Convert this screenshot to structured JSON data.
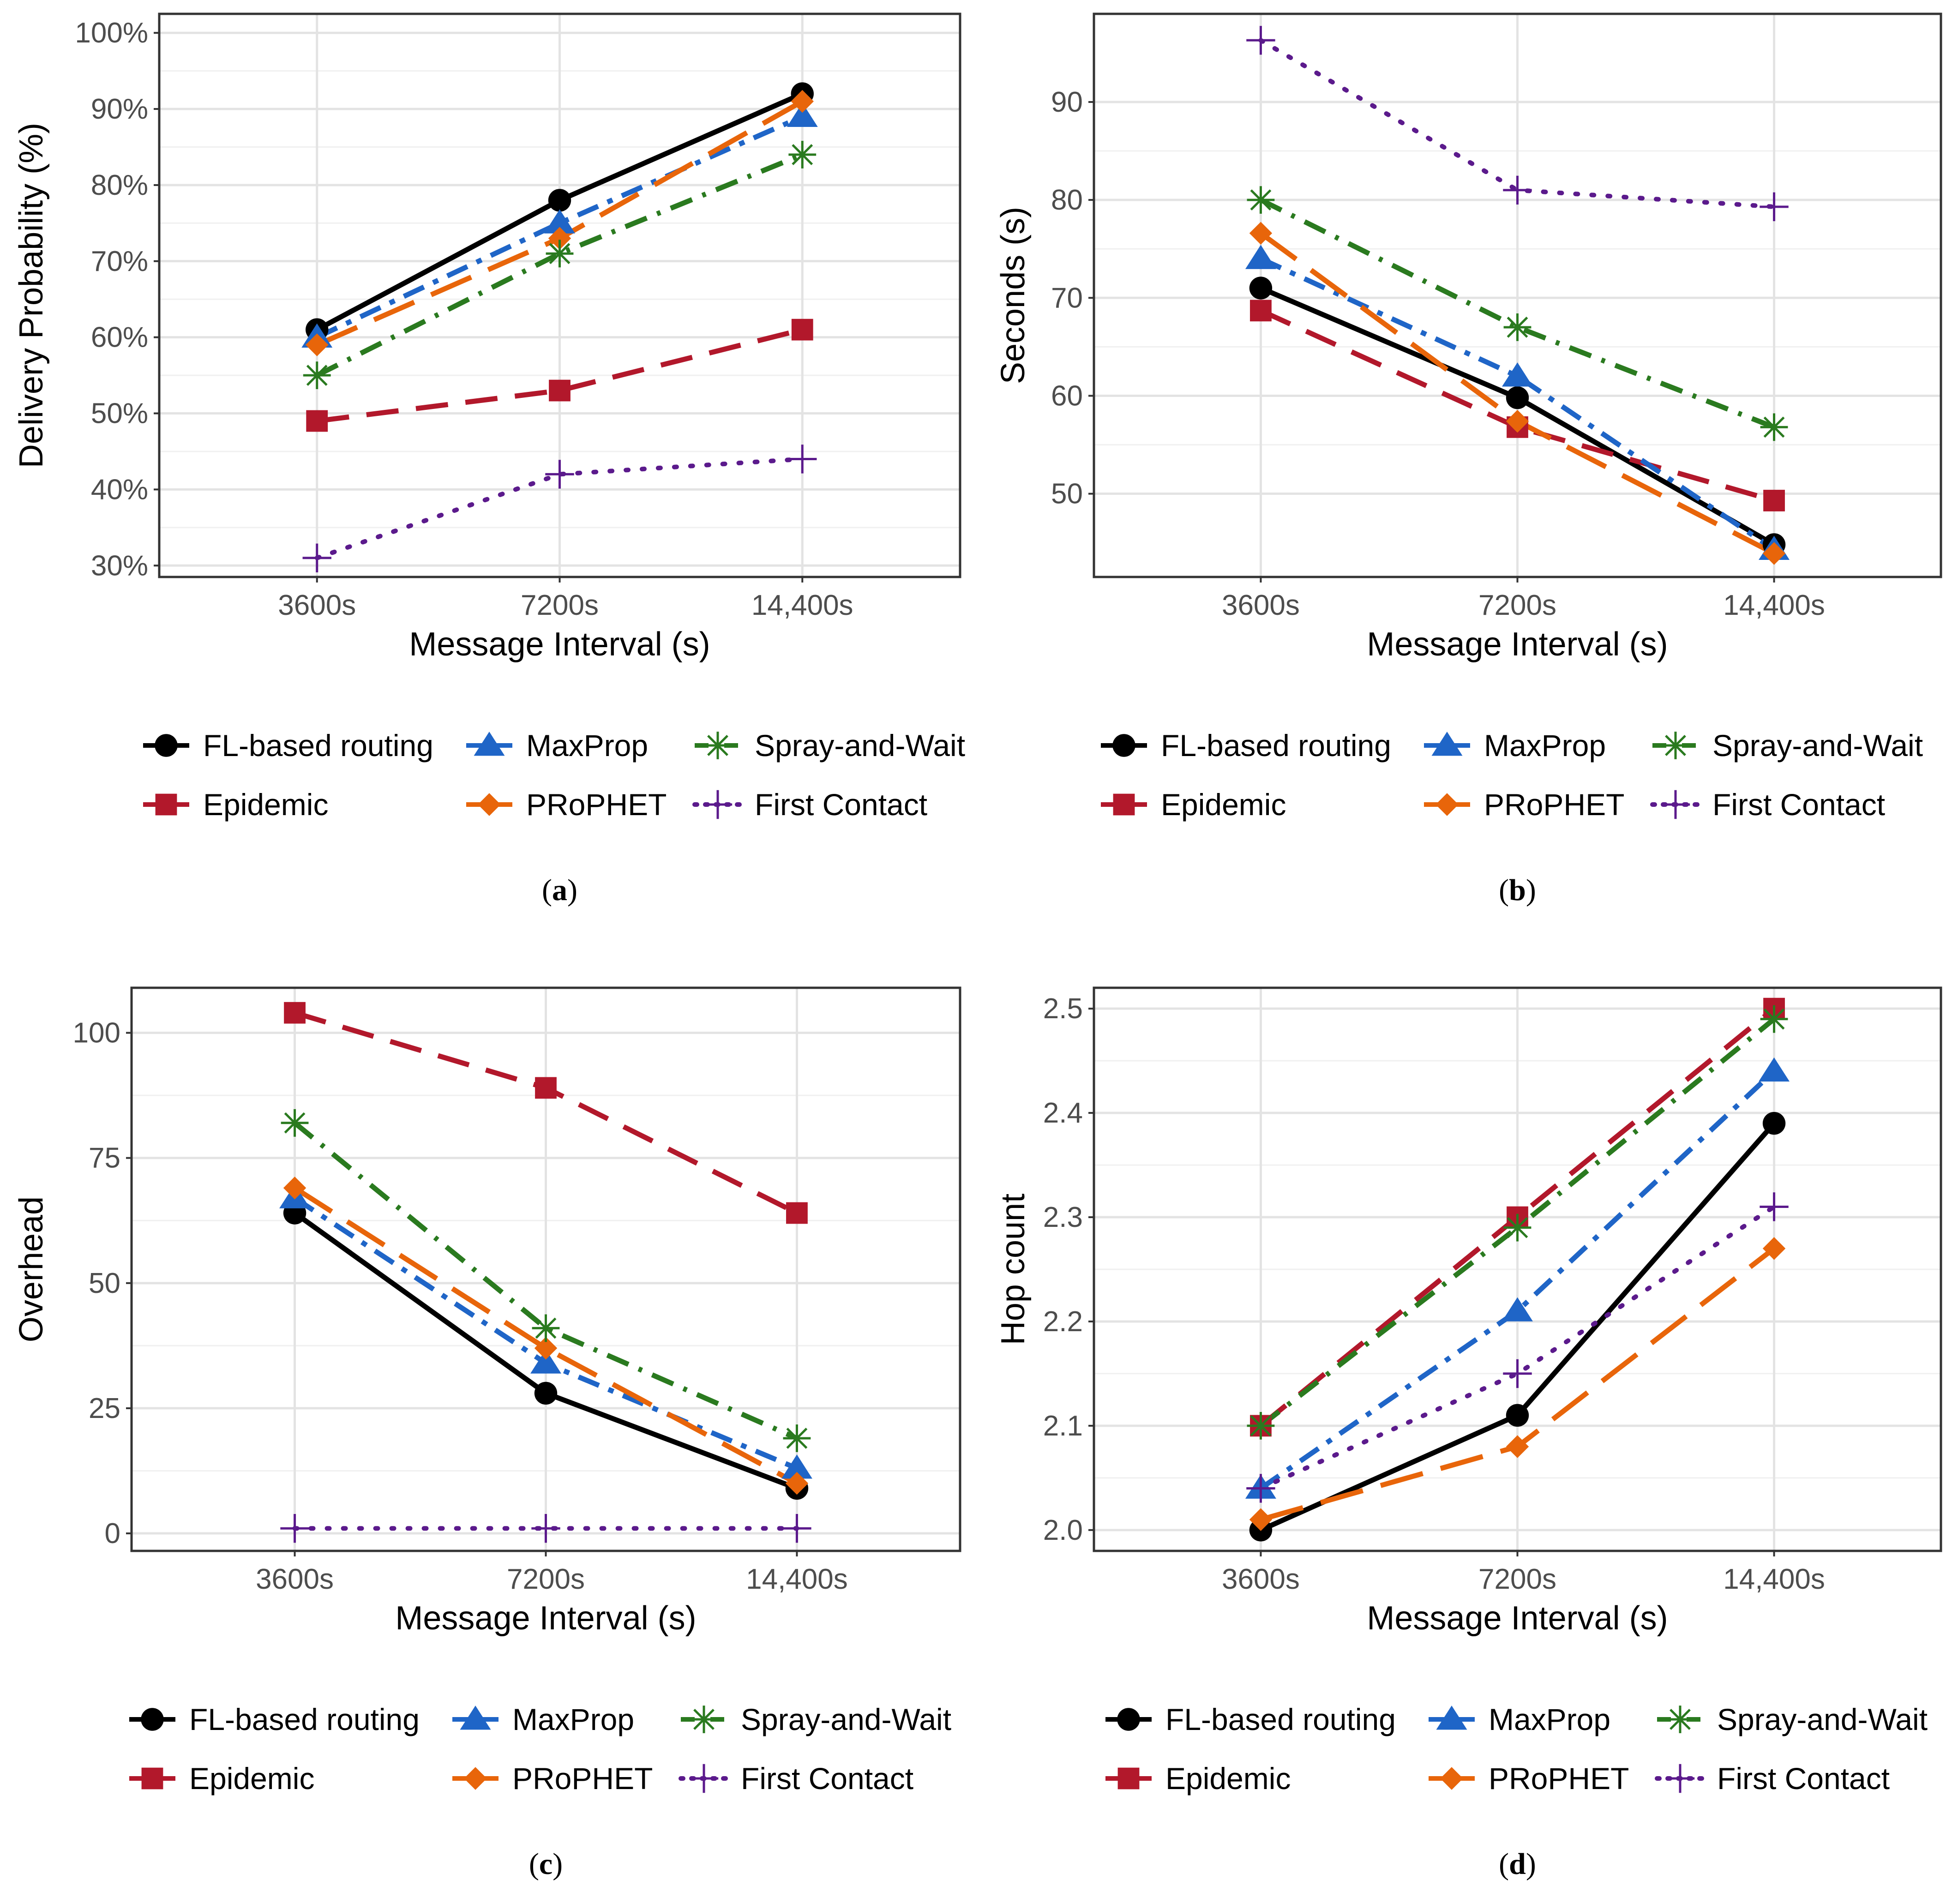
{
  "colors": {
    "FL-based routing": "#000000",
    "Epidemic": "#b2182b",
    "MaxProp": "#1f65c7",
    "PRoPHET": "#e8650a",
    "Spray-and-Wait": "#2a7a1f",
    "First Contact": "#5b1a8c"
  },
  "legend": {
    "entries": [
      "FL-based routing",
      "MaxProp",
      "Spray-and-Wait",
      "Epidemic",
      "PRoPHET",
      "First Contact"
    ]
  },
  "chart_data": [
    {
      "id": "a",
      "type": "line",
      "caption_label": "a",
      "xlabel": "Message Interval (s)",
      "ylabel": "Delivery Probability (%)",
      "categories": [
        "3600s",
        "7200s",
        "14,400s"
      ],
      "ylim": [
        28.5,
        102.5
      ],
      "yticks": [
        30,
        40,
        50,
        60,
        70,
        80,
        90,
        100
      ],
      "ytick_labels": [
        "30%",
        "40%",
        "50%",
        "60%",
        "70%",
        "80%",
        "90%",
        "100%"
      ],
      "series": [
        {
          "name": "FL-based routing",
          "values": [
            61,
            78,
            92
          ]
        },
        {
          "name": "Epidemic",
          "values": [
            49,
            53,
            61
          ]
        },
        {
          "name": "MaxProp",
          "values": [
            60,
            75,
            89
          ]
        },
        {
          "name": "PRoPHET",
          "values": [
            59,
            73,
            91
          ]
        },
        {
          "name": "Spray-and-Wait",
          "values": [
            55,
            71,
            84
          ]
        },
        {
          "name": "First Contact",
          "values": [
            31,
            42,
            44
          ]
        }
      ]
    },
    {
      "id": "b",
      "type": "line",
      "caption_label": "b",
      "xlabel": "Message Interval (s)",
      "ylabel": "Seconds (s)",
      "categories": [
        "3600s",
        "7200s",
        "14,400s"
      ],
      "ylim": [
        41.5,
        99
      ],
      "yticks": [
        50,
        60,
        70,
        80,
        90
      ],
      "ytick_labels": [
        "50",
        "60",
        "70",
        "80",
        "90"
      ],
      "series": [
        {
          "name": "FL-based routing",
          "values": [
            71,
            59.8,
            44.8
          ]
        },
        {
          "name": "Epidemic",
          "values": [
            68.7,
            56.8,
            49.3
          ]
        },
        {
          "name": "MaxProp",
          "values": [
            74,
            62,
            44.3
          ]
        },
        {
          "name": "PRoPHET",
          "values": [
            76.6,
            57.4,
            43.9
          ]
        },
        {
          "name": "Spray-and-Wait",
          "values": [
            80,
            67,
            56.8
          ]
        },
        {
          "name": "First Contact",
          "values": [
            96.3,
            81,
            79.3
          ]
        }
      ]
    },
    {
      "id": "c",
      "type": "line",
      "caption_label": "c",
      "xlabel": "Message Interval (s)",
      "ylabel": "Overhead",
      "categories": [
        "3600s",
        "7200s",
        "14,400s"
      ],
      "ylim": [
        -3.5,
        109
      ],
      "yticks": [
        0,
        25,
        50,
        75,
        100
      ],
      "ytick_labels": [
        "0",
        "25",
        "50",
        "75",
        "100"
      ],
      "series": [
        {
          "name": "FL-based routing",
          "values": [
            64,
            28,
            9
          ]
        },
        {
          "name": "Epidemic",
          "values": [
            104,
            89,
            64
          ]
        },
        {
          "name": "MaxProp",
          "values": [
            67,
            34,
            13
          ]
        },
        {
          "name": "PRoPHET",
          "values": [
            69,
            37,
            10
          ]
        },
        {
          "name": "Spray-and-Wait",
          "values": [
            82,
            41,
            19
          ]
        },
        {
          "name": "First Contact",
          "values": [
            1,
            1,
            1
          ]
        }
      ]
    },
    {
      "id": "d",
      "type": "line",
      "caption_label": "d",
      "xlabel": "Message Interval (s)",
      "ylabel": "Hop count",
      "categories": [
        "3600s",
        "7200s",
        "14,400s"
      ],
      "ylim": [
        1.98,
        2.52
      ],
      "yticks": [
        2.0,
        2.1,
        2.2,
        2.3,
        2.4,
        2.5
      ],
      "ytick_labels": [
        "2.0",
        "2.1",
        "2.2",
        "2.3",
        "2.4",
        "2.5"
      ],
      "series": [
        {
          "name": "FL-based routing",
          "values": [
            2.0,
            2.11,
            2.39
          ]
        },
        {
          "name": "Epidemic",
          "values": [
            2.1,
            2.3,
            2.5
          ]
        },
        {
          "name": "MaxProp",
          "values": [
            2.04,
            2.21,
            2.44
          ]
        },
        {
          "name": "PRoPHET",
          "values": [
            2.01,
            2.08,
            2.27
          ]
        },
        {
          "name": "Spray-and-Wait",
          "values": [
            2.1,
            2.29,
            2.49
          ]
        },
        {
          "name": "First Contact",
          "values": [
            2.04,
            2.15,
            2.31
          ]
        }
      ]
    }
  ]
}
